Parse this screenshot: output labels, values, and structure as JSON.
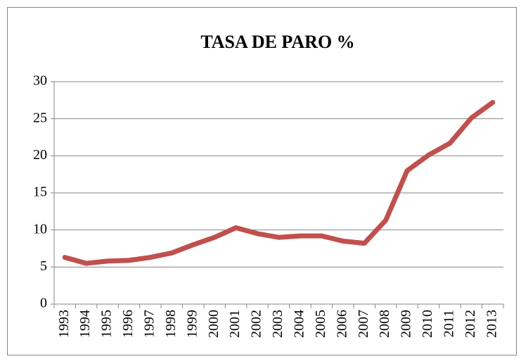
{
  "chart_data": {
    "type": "line",
    "title": "TASA DE PARO %",
    "categories": [
      "1993",
      "1994",
      "1995",
      "1996",
      "1997",
      "1998",
      "1999",
      "2000",
      "2001",
      "2002",
      "2003",
      "2004",
      "2005",
      "2006",
      "2007",
      "2008",
      "2009",
      "2010",
      "2011",
      "2012",
      "2013"
    ],
    "series": [
      {
        "name": "Tasa de paro",
        "color": "#c0504d",
        "values": [
          6.3,
          5.5,
          5.8,
          5.9,
          6.3,
          6.9,
          8.0,
          9.0,
          10.3,
          9.5,
          9.0,
          9.2,
          9.2,
          8.5,
          8.2,
          11.3,
          18.0,
          20.1,
          21.7,
          25.1,
          27.2
        ]
      }
    ],
    "ylim": [
      0,
      30
    ],
    "yticks": [
      0,
      5,
      10,
      15,
      20,
      25,
      30
    ],
    "grid": true,
    "legend": false
  }
}
